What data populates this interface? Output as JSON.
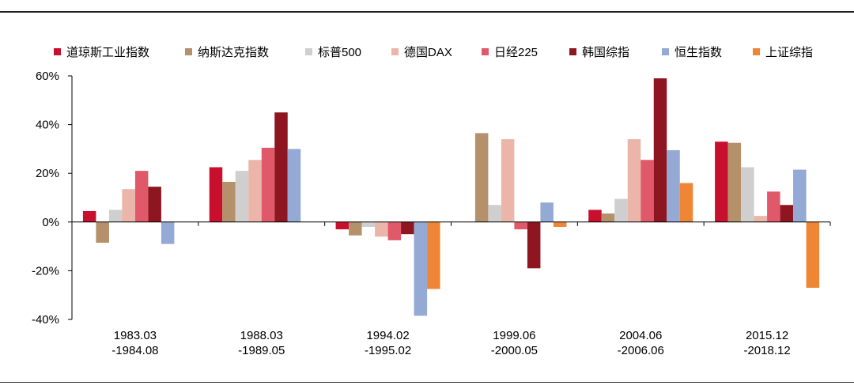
{
  "chart_data": {
    "type": "bar",
    "categories": [
      [
        "1983.03",
        "-1984.08"
      ],
      [
        "1988.03",
        "-1989.05"
      ],
      [
        "1994.02",
        "-1995.02"
      ],
      [
        "1999.06",
        "-2000.05"
      ],
      [
        "2004.06",
        "-2006.06"
      ],
      [
        "2015.12",
        "-2018.12"
      ]
    ],
    "ylim": [
      -40,
      60
    ],
    "yticks": [
      60,
      40,
      20,
      0,
      -20,
      -40
    ],
    "ytick_labels": [
      "60%",
      "40%",
      "20%",
      "0%",
      "-20%",
      "-40%"
    ],
    "legend_position": "top",
    "series": [
      {
        "name": "道琼斯工业指数",
        "color": "#C8102E",
        "values": [
          4.5,
          22.5,
          -3,
          null,
          5,
          33
        ]
      },
      {
        "name": "纳斯达克指数",
        "color": "#B5916B",
        "values": [
          -8.5,
          16.5,
          -5.5,
          36.5,
          3.5,
          32.5
        ]
      },
      {
        "name": "标普500",
        "color": "#CFCFCF",
        "values": [
          5,
          21,
          -2,
          7,
          9.5,
          22.5
        ]
      },
      {
        "name": "德国DAX",
        "color": "#EBB5AA",
        "values": [
          13.5,
          25.5,
          -6,
          34,
          34,
          2.5
        ]
      },
      {
        "name": "日经225",
        "color": "#E0596A",
        "values": [
          21,
          30.5,
          -7.5,
          -3,
          25.5,
          12.5
        ]
      },
      {
        "name": "韩国综指",
        "color": "#8E1620",
        "values": [
          14.5,
          45,
          -5,
          -19,
          59,
          7
        ]
      },
      {
        "name": "恒生指数",
        "color": "#94A9D3",
        "values": [
          -9,
          30,
          -38.5,
          8,
          29.5,
          21.5
        ]
      },
      {
        "name": "上证综指",
        "color": "#EE8636",
        "values": [
          null,
          null,
          -27.5,
          -2,
          16,
          -27
        ]
      }
    ]
  }
}
